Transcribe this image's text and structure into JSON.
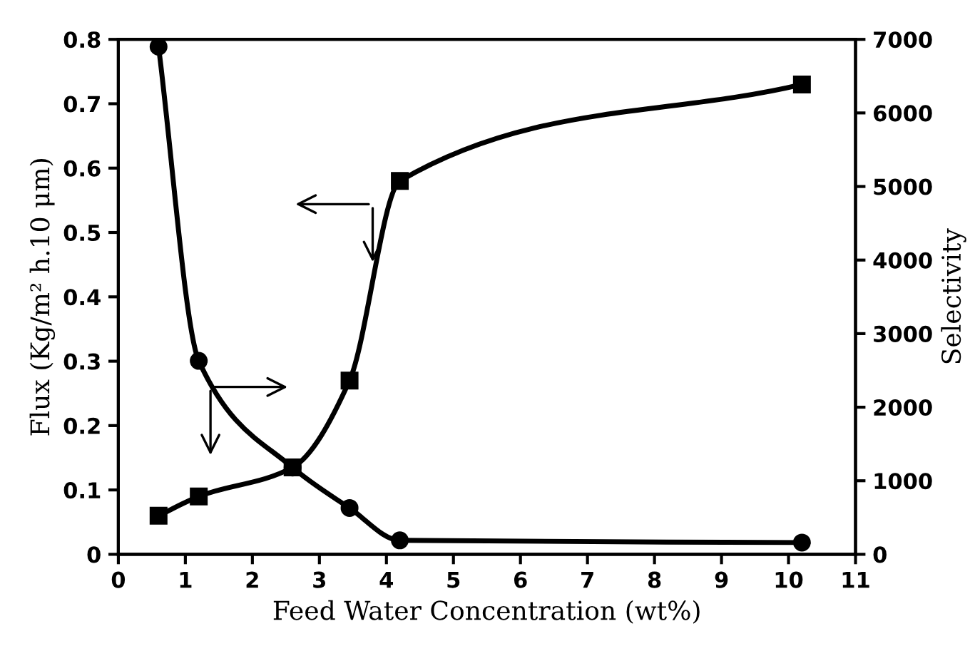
{
  "chart_data": {
    "type": "line",
    "xlabel": "Feed Water Concentration (wt%)",
    "ylabel": "Flux (Kg/m² h.10 μm)",
    "y2label": "Selectivity",
    "x": [
      0.6,
      1.2,
      2.6,
      3.45,
      4.2,
      10.2
    ],
    "series": [
      {
        "color": "#000000",
        "marker": "square",
        "values": [
          0.06,
          0.09,
          0.135,
          0.27,
          0.58,
          0.73
        ]
      },
      {
        "color": "#000000",
        "marker": "circle",
        "axis": "y2",
        "values": [
          6900,
          2630,
          1180,
          630,
          190,
          160
        ]
      }
    ],
    "xlim": [
      0,
      11
    ],
    "xticks": [
      0,
      1,
      2,
      3,
      4,
      5,
      6,
      7,
      8,
      9,
      10,
      11
    ],
    "ylim": [
      0,
      0.8
    ],
    "yticks": [
      0,
      0.1,
      0.2,
      0.3,
      0.4,
      0.5,
      0.6,
      0.7,
      0.8
    ],
    "y2lim": [
      0,
      7000
    ],
    "y2ticks": [
      0,
      1000,
      2000,
      3000,
      4000,
      5000,
      6000,
      7000
    ],
    "grid": false,
    "legend": false,
    "line_style": "solid"
  }
}
